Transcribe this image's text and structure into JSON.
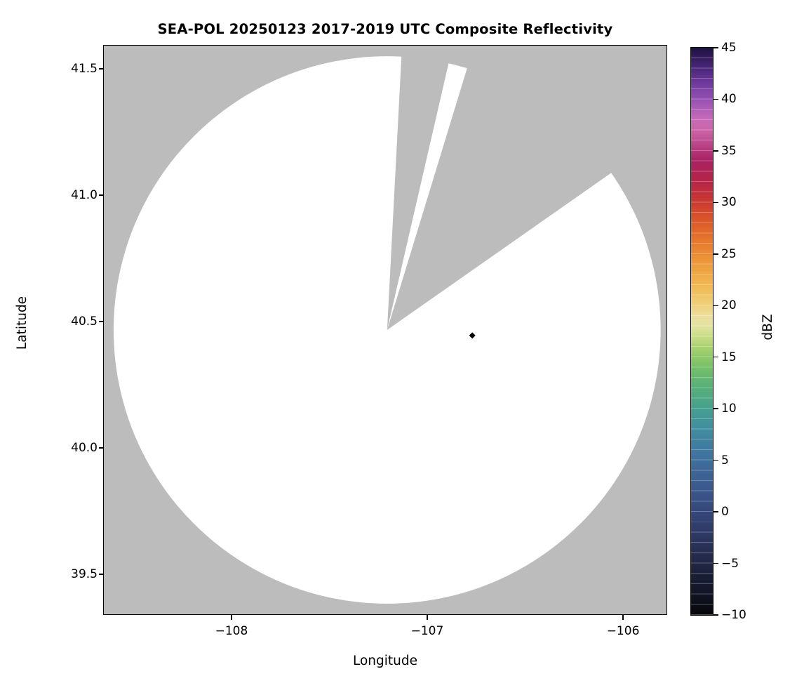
{
  "title": "SEA-POL 20250123 2017-2019 UTC Composite Reflectivity",
  "axes": {
    "xlabel": "Longitude",
    "ylabel": "Latitude"
  },
  "colorbar": {
    "label": "dBZ",
    "min": -10,
    "max": 45,
    "tick_values": [
      45,
      40,
      35,
      30,
      25,
      20,
      15,
      10,
      5,
      0,
      -5,
      -10
    ],
    "tick_labels": [
      "45",
      "40",
      "35",
      "30",
      "25",
      "20",
      "15",
      "10",
      "5",
      "0",
      "−5",
      "−10"
    ],
    "stops": [
      [
        -10,
        "#060608"
      ],
      [
        -8,
        "#121424"
      ],
      [
        -6,
        "#1c2038"
      ],
      [
        -4,
        "#262d50"
      ],
      [
        -2,
        "#2e3a66"
      ],
      [
        0,
        "#35477b"
      ],
      [
        2,
        "#3a568b"
      ],
      [
        4,
        "#3d6697"
      ],
      [
        6,
        "#3f79a0"
      ],
      [
        8,
        "#408da0"
      ],
      [
        10,
        "#45a08f"
      ],
      [
        12,
        "#57b079"
      ],
      [
        14,
        "#75bf69"
      ],
      [
        15,
        "#8ec968"
      ],
      [
        16,
        "#aad272"
      ],
      [
        17,
        "#c8dd86"
      ],
      [
        18,
        "#e2e3a0"
      ],
      [
        19,
        "#ecdf9e"
      ],
      [
        20,
        "#f0d07c"
      ],
      [
        22,
        "#f1b852"
      ],
      [
        24,
        "#ee9b3b"
      ],
      [
        26,
        "#e77c2e"
      ],
      [
        28,
        "#dc5c29"
      ],
      [
        30,
        "#cb3a30"
      ],
      [
        32,
        "#b62547"
      ],
      [
        34,
        "#a92161"
      ],
      [
        35,
        "#b23579"
      ],
      [
        36,
        "#c14f93"
      ],
      [
        37,
        "#cd64a8"
      ],
      [
        38,
        "#c76ab8"
      ],
      [
        39,
        "#b15fb8"
      ],
      [
        40,
        "#9650b2"
      ],
      [
        41,
        "#7d42a6"
      ],
      [
        42,
        "#643394"
      ],
      [
        43,
        "#4b277b"
      ],
      [
        44,
        "#351c5e"
      ],
      [
        45,
        "#1d1140"
      ]
    ]
  },
  "chart_data": {
    "type": "heatmap",
    "subtype": "radar-composite-reflectivity-map",
    "title": "SEA-POL 20250123 2017-2019 UTC Composite Reflectivity",
    "xlabel": "Longitude",
    "ylabel": "Latitude",
    "xlim": [
      -108.652,
      -105.778
    ],
    "ylim": [
      39.342,
      41.592
    ],
    "xtick_values": [
      -108,
      -107,
      -106
    ],
    "xtick_labels": [
      "−108",
      "−107",
      "−106"
    ],
    "ytick_values": [
      41.5,
      41.0,
      40.5,
      40.0,
      39.5
    ],
    "ytick_labels": [
      "41.5",
      "41.0",
      "40.5",
      "40.0",
      "39.5"
    ],
    "grid": false,
    "legend": false,
    "colorbar_label": "dBZ",
    "colorbar_range": [
      -10,
      45
    ],
    "colorbar_ticks": [
      -10,
      -5,
      0,
      5,
      10,
      15,
      20,
      25,
      30,
      35,
      40,
      45
    ],
    "radar": {
      "center_lon": -107.205,
      "center_lat": 40.467,
      "coverage_radius_deg_lat": 1.083
    },
    "blocked_sectors_azimuth_deg": [
      [
        3,
        13
      ],
      [
        17,
        55
      ]
    ],
    "markers": [
      {
        "lon": -106.77,
        "lat": 40.445,
        "shape": "diamond",
        "color": "#000000",
        "value_note": "small dark reflectivity pixel"
      }
    ],
    "colors": {
      "no_coverage_bg": "#bcbcbc",
      "coverage_fill": "#ffffff",
      "frame": "#000000"
    }
  }
}
